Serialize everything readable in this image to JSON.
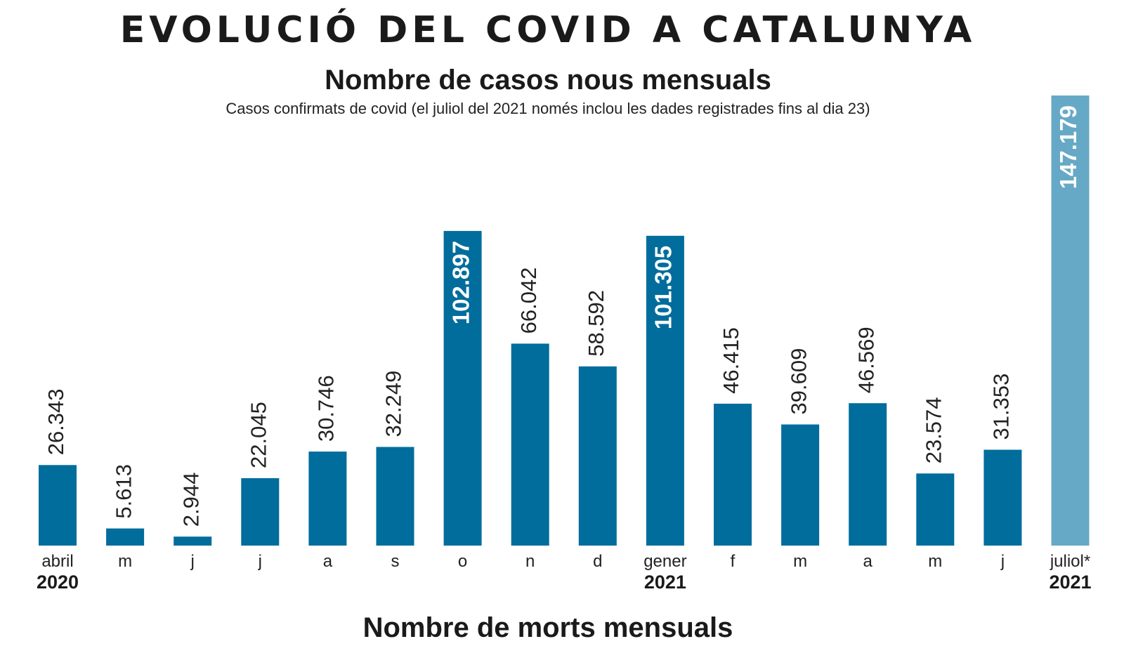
{
  "header": {
    "title": "EVOLUCIÓ DEL COVID A CATALUNYA",
    "subtitle": "Nombre de casos nous mensuals",
    "note": "Casos confirmats de covid (el juliol del 2021 només inclou les dades registrades fins al dia 23)"
  },
  "footer": {
    "next_title": "Nombre de morts mensuals"
  },
  "colors": {
    "bar": "#006d9c",
    "bar_partial": "#66a9c6",
    "label_dark": "#222222",
    "label_light": "#ffffff"
  },
  "chart_data": {
    "type": "bar",
    "title": "Nombre de casos nous mensuals",
    "xlabel": "",
    "ylabel": "",
    "grid": false,
    "legend": "none",
    "ylim": [
      0,
      147179
    ],
    "categories": [
      "abril",
      "m",
      "j",
      "j",
      "a",
      "s",
      "o",
      "n",
      "d",
      "gener",
      "f",
      "m",
      "a",
      "m",
      "j",
      "juliol*"
    ],
    "year_labels": [
      "2020",
      "",
      "",
      "",
      "",
      "",
      "",
      "",
      "",
      "2021",
      "",
      "",
      "",
      "",
      "",
      "2021"
    ],
    "values": [
      26343,
      5613,
      2944,
      22045,
      30746,
      32249,
      102897,
      66042,
      58592,
      101305,
      46415,
      39609,
      46569,
      23574,
      31353,
      147179
    ],
    "value_labels": [
      "26.343",
      "5.613",
      "2.944",
      "22.045",
      "30.746",
      "32.249",
      "102.897",
      "66.042",
      "58.592",
      "101.305",
      "46.415",
      "39.609",
      "46.569",
      "23.574",
      "31.353",
      "147.179"
    ],
    "highlighted": [
      false,
      false,
      false,
      false,
      false,
      false,
      true,
      false,
      false,
      true,
      false,
      false,
      false,
      false,
      false,
      true
    ],
    "partial": [
      false,
      false,
      false,
      false,
      false,
      false,
      false,
      false,
      false,
      false,
      false,
      false,
      false,
      false,
      false,
      true
    ]
  }
}
